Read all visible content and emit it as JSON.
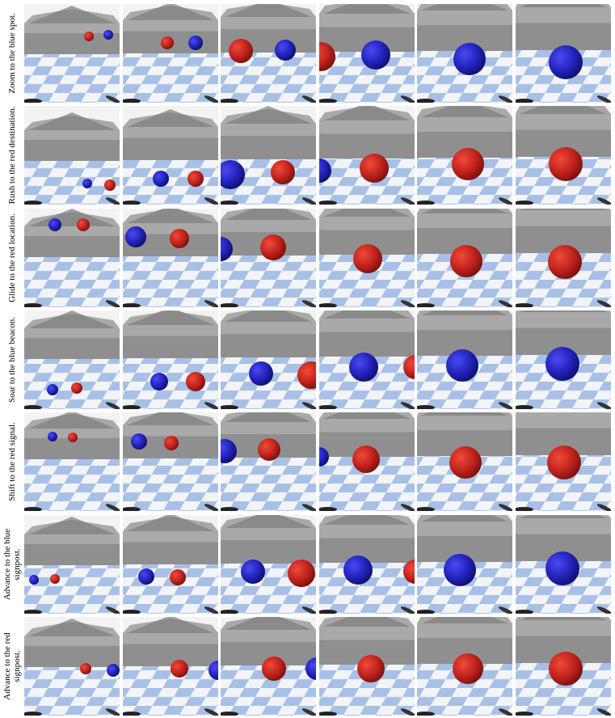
{
  "rows": [
    {
      "label": "Zoom to the blue spot."
    },
    {
      "label": "Rush to the red destination."
    },
    {
      "label": "Glide to the red location."
    },
    {
      "label": "Soar to the blue beacon."
    },
    {
      "label": "Shift to the red signal."
    },
    {
      "label": "Advance to the blue signpost."
    },
    {
      "label": "Advance to the red signpost."
    }
  ]
}
